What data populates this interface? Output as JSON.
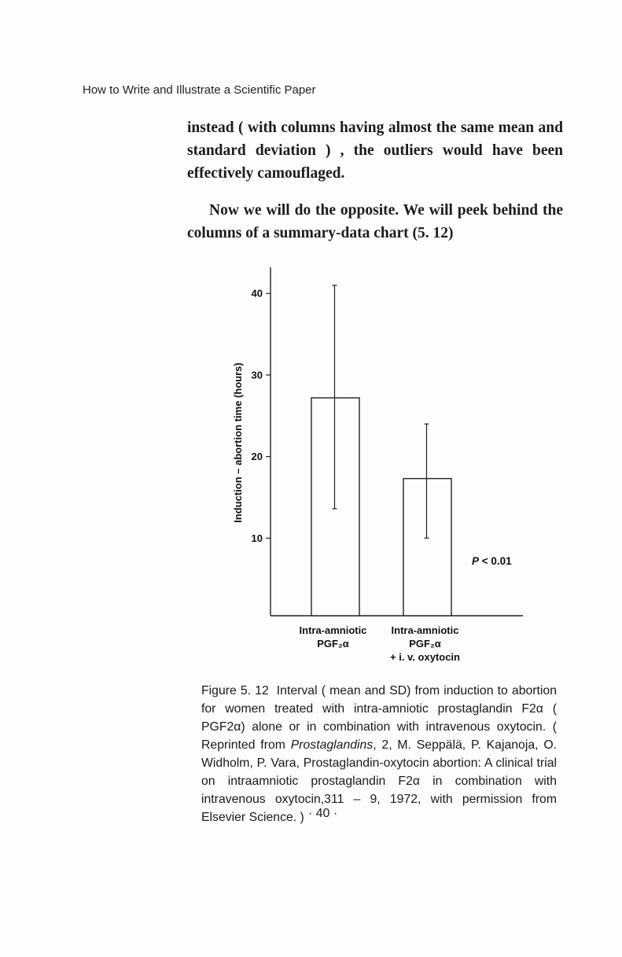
{
  "running_head": "How to Write and Illustrate a Scientific Paper",
  "paragraph_1": "instead ( with columns having almost the same mean and standard deviation ) , the outliers would have been effectively camouflaged.",
  "paragraph_2": "Now we will do the opposite. We will peek behind the columns of a summary-data chart (5. 12)",
  "chart_data": {
    "type": "bar",
    "ylabel": "Induction – abortion time (hours)",
    "ylim": [
      0,
      44
    ],
    "yticks": [
      "10",
      "20",
      "30",
      "40"
    ],
    "categories": [
      {
        "line1": "Intra-amniotic",
        "line2": "PGF₂α",
        "line3": ""
      },
      {
        "line1": "Intra-amniotic",
        "line2": "PGF₂α",
        "line3": "+ i. v. oxytocin"
      }
    ],
    "values": [
      27.2,
      17.3
    ],
    "sd_low": [
      13.6,
      10.0
    ],
    "sd_high": [
      41.0,
      24.0
    ],
    "annotation": "P < 0.01"
  },
  "caption": {
    "label": "Figure 5. 12",
    "text_1": "Interval ( mean and SD) from induction to abortion for women treated with intra-amniotic prostaglandin F2α ( PGF2α) alone or in combination with intravenous oxytocin. ( Reprinted from ",
    "journal": "Prostaglandins",
    "text_2": ", 2, M. Seppälä, P. Kajanoja, O. Widholm, P. Vara, Prostaglandin-oxytocin abortion: A clinical trial on intraamniotic prostaglandin F2α in combination with intravenous oxytocin,311 – 9, 1972, with permission from Elsevier Science. )"
  },
  "page_number": "· 40 ·"
}
